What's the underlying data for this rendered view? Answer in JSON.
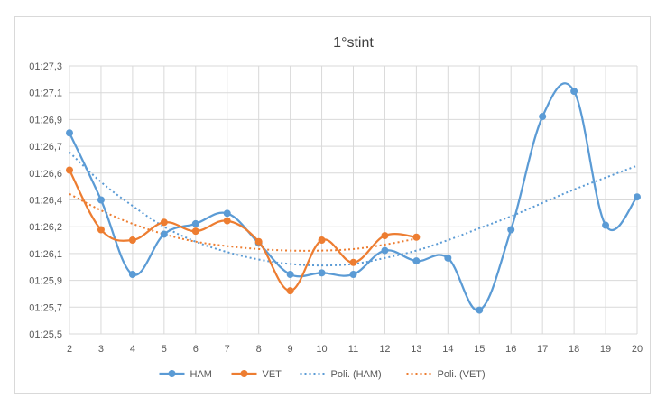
{
  "chart_data": {
    "type": "line",
    "title": "1°stint",
    "xlabel": "",
    "ylabel": "",
    "x": [
      2,
      3,
      4,
      5,
      6,
      7,
      8,
      9,
      10,
      11,
      12,
      13,
      14,
      15,
      16,
      17,
      18,
      19,
      20
    ],
    "y_tick_labels": [
      "01:27,3",
      "01:27,1",
      "01:26,9",
      "01:26,7",
      "01:26,6",
      "01:26,4",
      "01:26,2",
      "01:26,1",
      "01:25,9",
      "01:25,7",
      "01:25,5"
    ],
    "ylim_seconds": [
      85.5,
      87.3
    ],
    "grid": true,
    "legend_position": "bottom",
    "series": [
      {
        "name": "HAM",
        "color": "#5b9bd5",
        "style": "smooth-line-markers",
        "x": [
          2,
          3,
          4,
          5,
          6,
          7,
          8,
          9,
          10,
          11,
          12,
          13,
          14,
          15,
          16,
          17,
          18,
          19,
          20
        ],
        "y": [
          86.85,
          86.4,
          85.9,
          86.17,
          86.24,
          86.31,
          86.11,
          85.9,
          85.91,
          85.9,
          86.06,
          85.99,
          86.01,
          85.66,
          86.2,
          86.96,
          87.13,
          86.23,
          86.42
        ]
      },
      {
        "name": "VET",
        "color": "#ed7d31",
        "style": "smooth-line-markers",
        "x": [
          2,
          3,
          4,
          5,
          6,
          7,
          8,
          9,
          10,
          11,
          12,
          13
        ],
        "y": [
          86.6,
          86.2,
          86.13,
          86.25,
          86.19,
          86.26,
          86.12,
          85.79,
          86.13,
          85.98,
          86.16,
          86.15
        ]
      },
      {
        "name": "Poli. (HAM)",
        "color": "#5b9bd5",
        "style": "dotted-trendline",
        "x": [
          2,
          3,
          4,
          5,
          6,
          7,
          8,
          9,
          10,
          11,
          12,
          13,
          14,
          15,
          16,
          17,
          18,
          19,
          20
        ],
        "y": [
          86.72,
          86.52,
          86.36,
          86.22,
          86.12,
          86.05,
          86.0,
          85.97,
          85.96,
          85.97,
          86.01,
          86.06,
          86.13,
          86.21,
          86.29,
          86.38,
          86.47,
          86.55,
          86.63
        ]
      },
      {
        "name": "Poli. (VET)",
        "color": "#ed7d31",
        "style": "dotted-trendline",
        "x": [
          2,
          3,
          4,
          5,
          6,
          7,
          8,
          9,
          10,
          11,
          12,
          13
        ],
        "y": [
          86.44,
          86.33,
          86.24,
          86.17,
          86.12,
          86.09,
          86.07,
          86.06,
          86.06,
          86.07,
          86.1,
          86.14
        ]
      }
    ]
  }
}
